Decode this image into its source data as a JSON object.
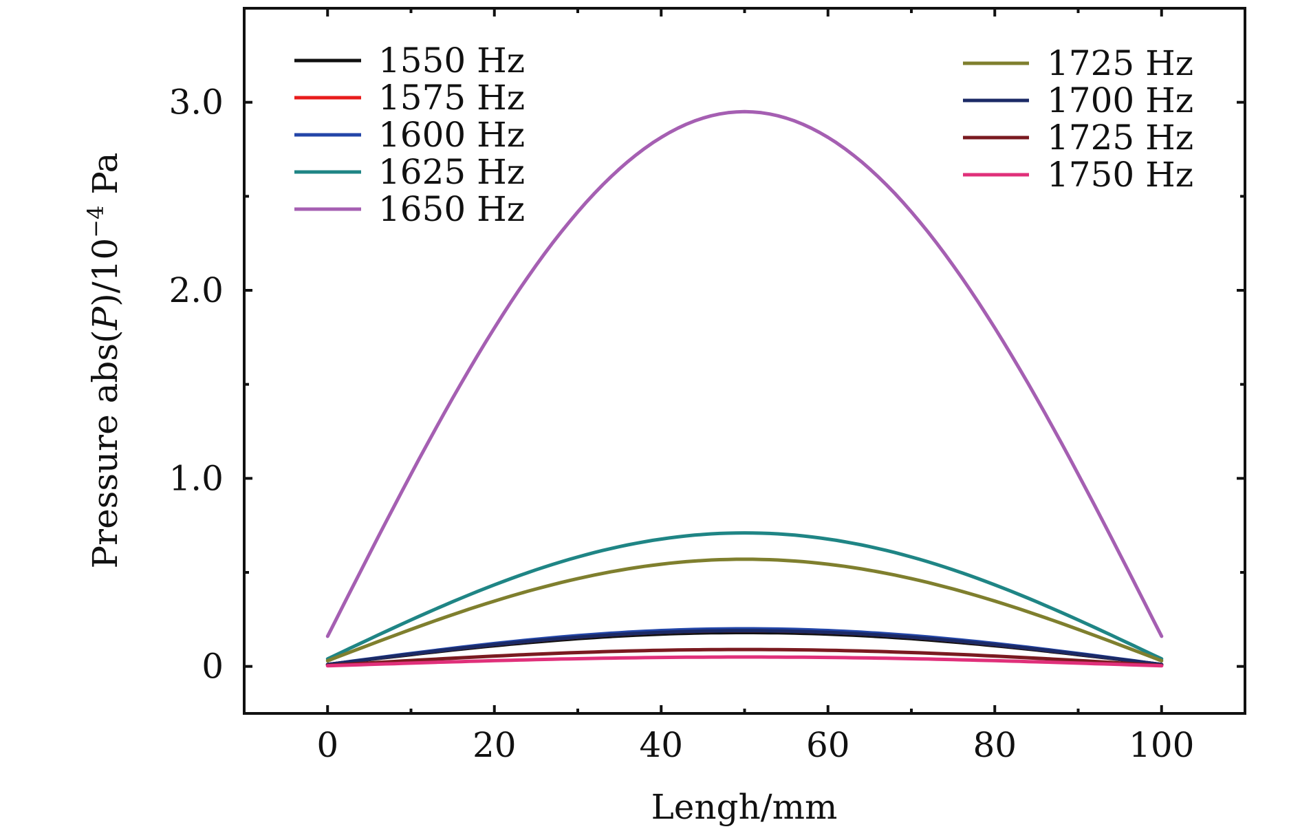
{
  "chart_data": {
    "type": "line",
    "title": "",
    "xlabel": "Lengh/mm",
    "ylabel_prefix": "Pressure abs(",
    "ylabel_var": "P",
    "ylabel_mid": ")/10",
    "ylabel_exp": "−4",
    "ylabel_unit": " Pa",
    "xlim": [
      -10,
      110
    ],
    "ylim": [
      -0.25,
      3.5
    ],
    "x_ticks": [
      0,
      20,
      40,
      60,
      80,
      100
    ],
    "x_tick_labels": [
      "0",
      "20",
      "40",
      "60",
      "80",
      "100"
    ],
    "y_ticks": [
      0,
      1.0,
      2.0,
      3.0
    ],
    "y_tick_labels": [
      "0",
      "1.0",
      "2.0",
      "3.0"
    ],
    "x_minor_step": 10,
    "y_minor_step": 0.5,
    "grid": false,
    "legend_position": "top-left and top-right (two columns)",
    "series": [
      {
        "name": "1550 Hz",
        "color": "#111111",
        "edge": 0.01,
        "peak": 0.18,
        "legend_col": "left"
      },
      {
        "name": "1575 Hz",
        "color": "#e81c1c",
        "edge": 0.01,
        "peak": 0.19,
        "legend_col": "left"
      },
      {
        "name": "1600 Hz",
        "color": "#2346a8",
        "edge": 0.01,
        "peak": 0.2,
        "legend_col": "left"
      },
      {
        "name": "1625 Hz",
        "color": "#1f8585",
        "edge": 0.04,
        "peak": 0.71,
        "legend_col": "left"
      },
      {
        "name": "1650 Hz",
        "color": "#a55fb2",
        "edge": 0.16,
        "peak": 2.95,
        "legend_col": "left"
      },
      {
        "name": "1725 Hz",
        "color": "#7f7f2e",
        "edge": 0.03,
        "peak": 0.57,
        "legend_col": "right"
      },
      {
        "name": "1700 Hz",
        "color": "#1b2a66",
        "edge": 0.01,
        "peak": 0.19,
        "legend_col": "right"
      },
      {
        "name": "1725 Hz",
        "color": "#7a1a20",
        "edge": 0.005,
        "peak": 0.09,
        "legend_col": "right"
      },
      {
        "name": "1750 Hz",
        "color": "#e0307a",
        "edge": 0.003,
        "peak": 0.05,
        "legend_col": "right"
      }
    ]
  }
}
